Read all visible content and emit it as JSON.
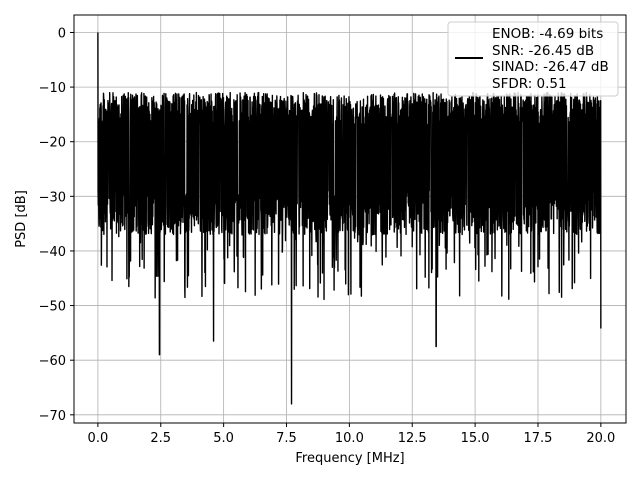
{
  "chart_data": {
    "type": "line",
    "title": "",
    "xlabel": "Frequency [MHz]",
    "ylabel": "PSD [dB]",
    "xlim": [
      -0.95,
      21.0
    ],
    "ylim": [
      -71.5,
      3.2
    ],
    "xticks": [
      0.0,
      2.5,
      5.0,
      7.5,
      10.0,
      12.5,
      15.0,
      17.5,
      20.0
    ],
    "xtick_labels": [
      "0.0",
      "2.5",
      "5.0",
      "7.5",
      "10.0",
      "12.5",
      "15.0",
      "17.5",
      "20.0"
    ],
    "yticks": [
      0,
      -10,
      -20,
      -30,
      -40,
      -50,
      -60,
      -70
    ],
    "ytick_labels": [
      "0",
      "−10",
      "−20",
      "−30",
      "−40",
      "−50",
      "−60",
      "−70"
    ],
    "grid": true,
    "legend_position": "top-right",
    "series": [
      {
        "name": "",
        "color": "#000000",
        "noise_floor_range": [
          -37,
          -11
        ],
        "x_range": [
          0.0,
          20.0
        ],
        "peaks": [
          {
            "x": 0.0,
            "y": 0.0
          },
          {
            "x": 2.45,
            "y": -59
          },
          {
            "x": 4.6,
            "y": -56.5
          },
          {
            "x": 7.7,
            "y": -68
          },
          {
            "x": 13.45,
            "y": -57.5
          },
          {
            "x": 20.0,
            "y": -54.2
          }
        ]
      }
    ],
    "legend_lines": [
      "ENOB: -4.69 bits",
      "SNR: -26.45 dB",
      "SINAD: -26.47 dB",
      "SFDR: 0.51"
    ]
  }
}
